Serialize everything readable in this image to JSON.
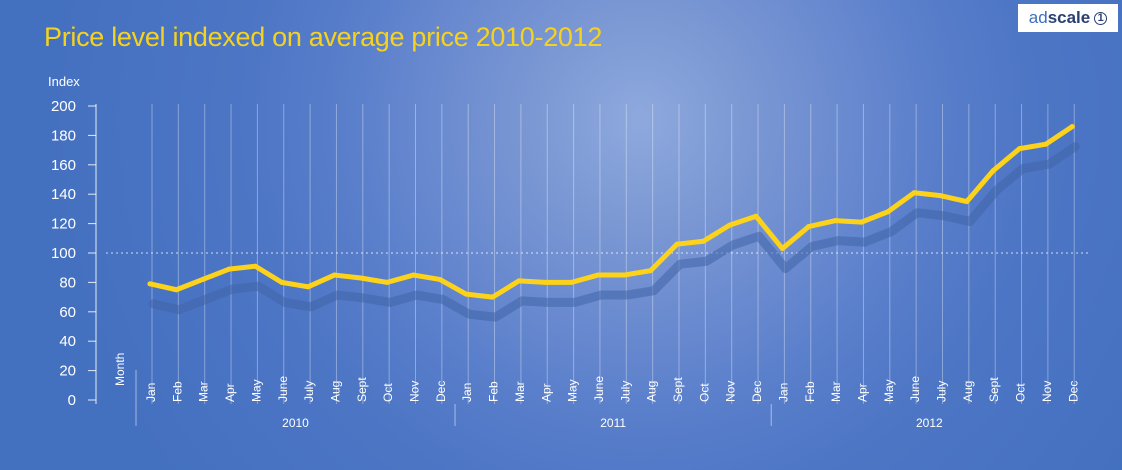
{
  "chart_data": {
    "type": "line",
    "title": "Price level indexed on average price 2010-2012",
    "ylabel": "Index",
    "xlabel": "Month",
    "ylim": [
      0,
      200
    ],
    "yticks": [
      0,
      20,
      40,
      60,
      80,
      100,
      120,
      140,
      160,
      180,
      200
    ],
    "grid": "vertical",
    "reference_line": 100,
    "categories": [
      "Jan",
      "Feb",
      "Mar",
      "Apr",
      "May",
      "June",
      "July",
      "Aug",
      "Sept",
      "Oct",
      "Nov",
      "Dec",
      "Jan",
      "Feb",
      "Mar",
      "Apr",
      "May",
      "June",
      "July",
      "Aug",
      "Sept",
      "Oct",
      "Nov",
      "Dec",
      "Jan",
      "Feb",
      "Mar",
      "Apr",
      "May",
      "June",
      "July",
      "Aug",
      "Sept",
      "Oct",
      "Nov",
      "Dec"
    ],
    "years": [
      "2010",
      "2011",
      "2012"
    ],
    "series": [
      {
        "values": [
          79,
          75,
          82,
          89,
          91,
          80,
          77,
          85,
          83,
          80,
          85,
          82,
          72,
          70,
          81,
          80,
          80,
          85,
          85,
          88,
          106,
          108,
          119,
          125,
          103,
          118,
          122,
          121,
          128,
          141,
          139,
          135,
          156,
          171,
          174,
          186
        ]
      }
    ],
    "colors": {
      "line": "#fcd21a",
      "shadow": "#3f64a8",
      "title": "#f5d21f",
      "axis_text": "#ffffff"
    }
  },
  "logo": {
    "part1": "ad",
    "part2": "scale",
    "mark": "1"
  }
}
